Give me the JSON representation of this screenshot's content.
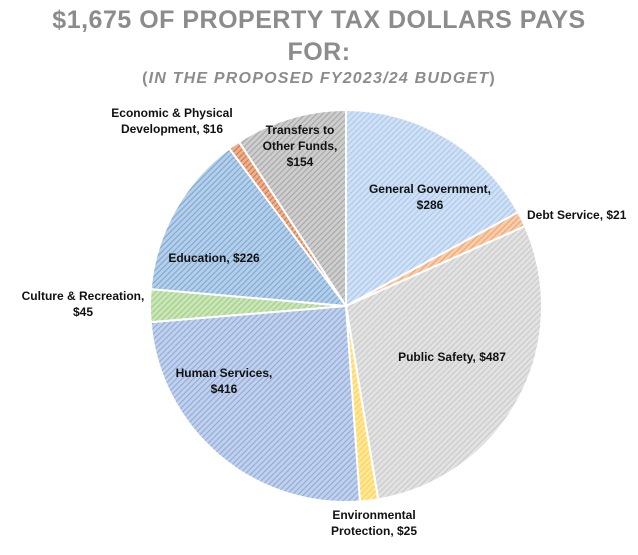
{
  "title_line1": "$1,675 OF PROPERTY TAX DOLLARS PAYS",
  "title_line2": "FOR:",
  "subtitle_prefix": "(",
  "subtitle_italic": "IN THE PROPOSED FY2023/24 BUDGET",
  "subtitle_suffix": ")",
  "chart_data": {
    "type": "pie",
    "title": "$1,675 OF PROPERTY TAX DOLLARS PAYS FOR:",
    "subtitle": "(IN THE PROPOSED FY2023/24 BUDGET)",
    "total": 1675,
    "slices": [
      {
        "label": "General Government",
        "value": 286,
        "value_label": "$286",
        "color": "#a9c8ec"
      },
      {
        "label": "Debt Service",
        "value": 21,
        "value_label": "$21",
        "color": "#f0a46a"
      },
      {
        "label": "Public Safety",
        "value": 487,
        "value_label": "$487",
        "color": "#c9c9c9"
      },
      {
        "label": "Environmental Protection",
        "value": 25,
        "value_label": "$25",
        "color": "#ffd24a"
      },
      {
        "label": "Human Services",
        "value": 416,
        "value_label": "$416",
        "color": "#8eaadb"
      },
      {
        "label": "Culture & Recreation",
        "value": 45,
        "value_label": "$45",
        "color": "#9fcf7f"
      },
      {
        "label": "Education",
        "value": 226,
        "value_label": "$226",
        "color": "#7aa7d6"
      },
      {
        "label": "Economic & Physical Development",
        "value": 16,
        "value_label": "$16",
        "color": "#d9733a"
      },
      {
        "label": "Transfers to Other Funds",
        "value": 154,
        "value_label": "$154",
        "color": "#a6a6a6"
      }
    ],
    "labels": [
      {
        "lines": [
          "General Government,",
          "$286"
        ]
      },
      {
        "lines": [
          "Debt Service,  $21"
        ]
      },
      {
        "lines": [
          "Public Safety,  $487"
        ]
      },
      {
        "lines": [
          "Environmental",
          "Protection,  $25"
        ]
      },
      {
        "lines": [
          "Human Services,",
          "$416"
        ]
      },
      {
        "lines": [
          "Culture & Recreation,",
          "$45"
        ]
      },
      {
        "lines": [
          "Education,  $226"
        ]
      },
      {
        "lines": [
          "Economic & Physical",
          "Development,  $16"
        ]
      },
      {
        "lines": [
          "Transfers to",
          "Other Funds,",
          "$154"
        ]
      }
    ]
  }
}
